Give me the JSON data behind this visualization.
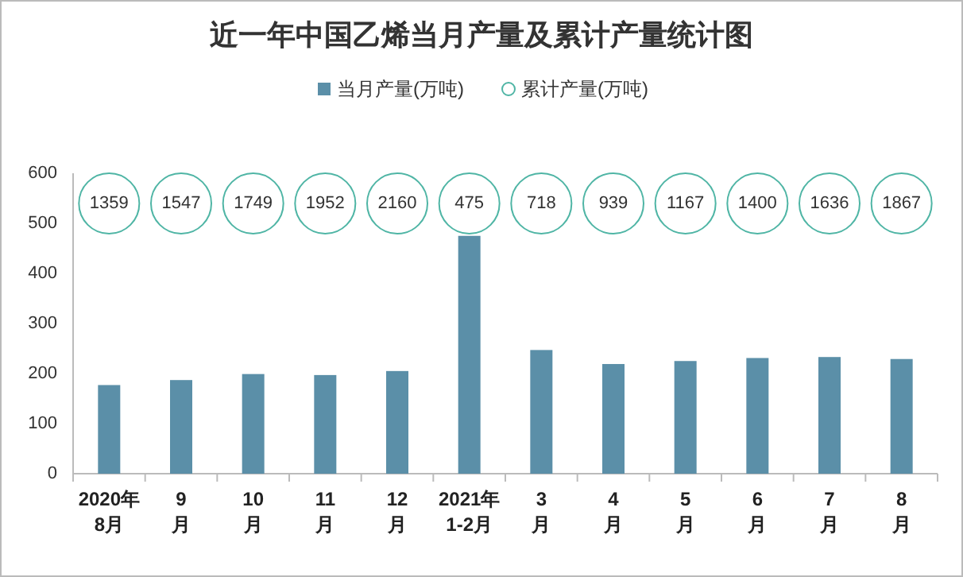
{
  "chart_data": {
    "type": "bar",
    "title": "近一年中国乙烯当月产量及累计产量统计图",
    "categories": [
      "2020年\n8月",
      "9\n月",
      "10\n月",
      "11\n月",
      "12\n月",
      "2021年\n1-2月",
      "3\n月",
      "4\n月",
      "5\n月",
      "6\n月",
      "7\n月",
      "8\n月"
    ],
    "series": [
      {
        "name": "当月产量(万吨)",
        "color": "#5b8fa8",
        "values": [
          177,
          187,
          199,
          197,
          205,
          475,
          247,
          219,
          225,
          231,
          233,
          229
        ]
      },
      {
        "name": "累计产量(万吨)",
        "type": "scatter",
        "color": "#4fb5a5",
        "marker": "circle",
        "values": [
          null,
          null,
          null,
          null,
          null,
          null,
          null,
          null,
          null,
          null,
          null,
          null
        ]
      }
    ],
    "annotations": [
      "1359",
      "1547",
      "1749",
      "1952",
      "2160",
      "475",
      "718",
      "939",
      "1167",
      "1400",
      "1636",
      "1867"
    ],
    "ylim": [
      0,
      600
    ],
    "yticks": [
      0,
      100,
      200,
      300,
      400,
      500,
      600
    ],
    "grid": false,
    "legend": "top"
  }
}
